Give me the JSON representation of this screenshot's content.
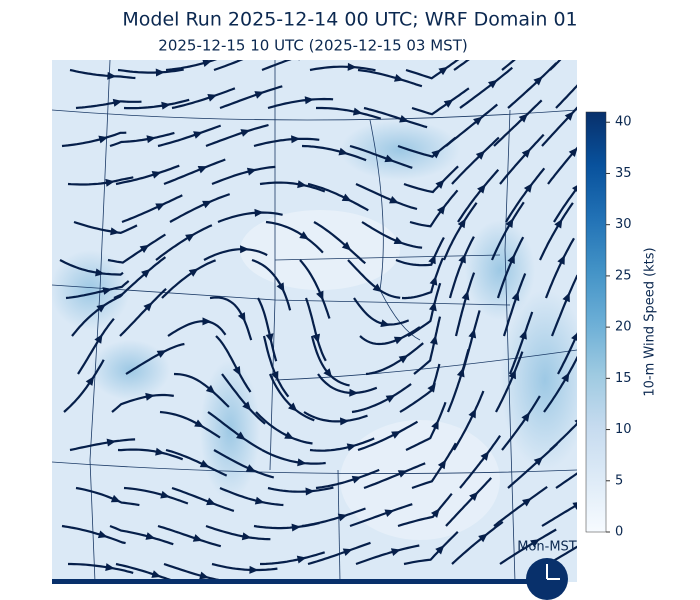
{
  "title": "Model Run 2025-12-14 00 UTC; WRF Domain 01",
  "subtitle": "2025-12-15 10 UTC  (2025-12-15 03 MST)",
  "colorbar": {
    "label": "10-m Wind Speed (kts)",
    "lim": [
      0,
      41
    ],
    "ticks": [
      0,
      5,
      10,
      15,
      20,
      25,
      30,
      35,
      40
    ],
    "colormap": [
      "#f7fbff",
      "#deebf7",
      "#c6dbef",
      "#9ecae1",
      "#6baed6",
      "#4292c6",
      "#2171b5",
      "#08519c",
      "#08306b"
    ]
  },
  "clock": {
    "label": "Mon-MST"
  }
}
